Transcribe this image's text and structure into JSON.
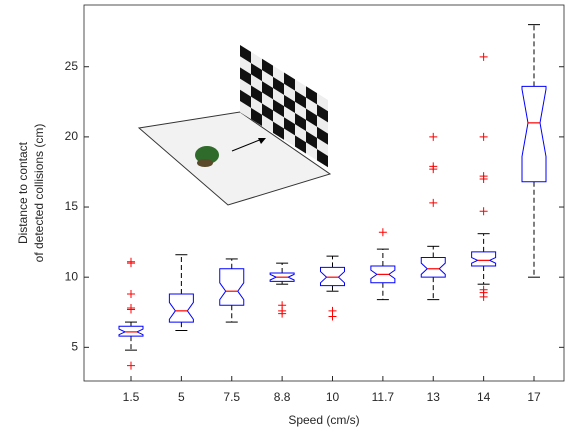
{
  "chart_data": {
    "type": "box",
    "xlabel": "Speed (cm/s)",
    "ylabel": [
      "Distance to contact",
      "of detected collisions (cm)"
    ],
    "categories": [
      "1.5",
      "5",
      "7.5",
      "8.8",
      "10",
      "11.7",
      "13",
      "14",
      "17"
    ],
    "boxes": [
      {
        "whisker_lo": 4.8,
        "q1": 5.8,
        "notch_lo": 5.9,
        "median": 6.1,
        "notch_hi": 6.3,
        "q3": 6.5,
        "whisker_hi": 6.8,
        "outliers": [
          3.7,
          7.7,
          7.8,
          8.8,
          11.0,
          11.1
        ]
      },
      {
        "whisker_lo": 6.2,
        "q1": 6.8,
        "notch_lo": 7.0,
        "median": 7.6,
        "notch_hi": 8.2,
        "q3": 8.8,
        "whisker_hi": 11.6,
        "outliers": []
      },
      {
        "whisker_lo": 6.8,
        "q1": 8.0,
        "notch_lo": 8.4,
        "median": 9.0,
        "notch_hi": 9.6,
        "q3": 10.6,
        "whisker_hi": 11.3,
        "outliers": []
      },
      {
        "whisker_lo": 9.5,
        "q1": 9.7,
        "notch_lo": 9.8,
        "median": 10.0,
        "notch_hi": 10.2,
        "q3": 10.3,
        "whisker_hi": 11.0,
        "outliers": [
          7.4,
          7.6,
          8.0
        ]
      },
      {
        "whisker_lo": 9.0,
        "q1": 9.4,
        "notch_lo": 9.6,
        "median": 10.0,
        "notch_hi": 10.4,
        "q3": 10.7,
        "whisker_hi": 11.5,
        "outliers": [
          7.2,
          7.6
        ]
      },
      {
        "whisker_lo": 8.4,
        "q1": 9.6,
        "notch_lo": 9.9,
        "median": 10.2,
        "notch_hi": 10.5,
        "q3": 10.8,
        "whisker_hi": 12.0,
        "outliers": [
          13.2
        ]
      },
      {
        "whisker_lo": 8.4,
        "q1": 10.0,
        "notch_lo": 10.2,
        "median": 10.6,
        "notch_hi": 11.0,
        "q3": 11.4,
        "whisker_hi": 12.2,
        "outliers": [
          15.3,
          17.7,
          17.9,
          20.0
        ]
      },
      {
        "whisker_lo": 9.5,
        "q1": 10.8,
        "notch_lo": 11.0,
        "median": 11.2,
        "notch_hi": 11.4,
        "q3": 11.8,
        "whisker_hi": 13.1,
        "outliers": [
          8.6,
          8.9,
          9.1,
          14.7,
          17.0,
          17.2,
          20.0,
          25.7
        ]
      },
      {
        "whisker_lo": 10.0,
        "q1": 16.8,
        "notch_lo": 18.6,
        "median": 21.0,
        "notch_hi": 23.4,
        "q3": 23.6,
        "whisker_hi": 28.0,
        "outliers": []
      }
    ],
    "box_color": "#0000ff",
    "median_color": "#ff0000",
    "outlier_color": "#ff0000",
    "whisker_color": "#000000",
    "ylim": [
      2.6,
      29.4
    ],
    "yticks": [
      5,
      10,
      15,
      20,
      25
    ],
    "grid": false
  }
}
